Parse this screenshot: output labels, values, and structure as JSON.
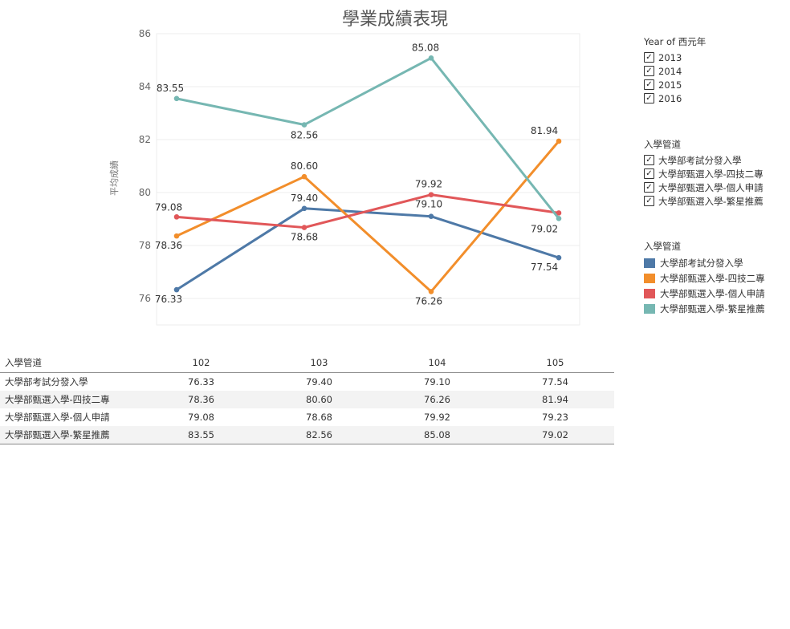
{
  "title": "學業成績表現",
  "year_filter": {
    "title": "Year of 西元年",
    "options": [
      "2013",
      "2014",
      "2015",
      "2016"
    ]
  },
  "channel_filter": {
    "title": "入學管道",
    "options": [
      "大學部考試分發入學",
      "大學部甄選入學-四技二專",
      "大學部甄選入學-個人申請",
      "大學部甄選入學-繁星推薦"
    ]
  },
  "color_legend": {
    "title": "入學管道",
    "items": [
      "大學部考試分發入學",
      "大學部甄選入學-四技二專",
      "大學部甄選入學-個人申請",
      "大學部甄選入學-繁星推薦"
    ]
  },
  "colors": [
    "#4e79a7",
    "#f28e2b",
    "#e15759",
    "#76b7b2"
  ],
  "chart_data": {
    "type": "line",
    "title": "學業成績表現",
    "ylabel": "平均成績",
    "xlabel": "",
    "ylim": [
      75,
      86
    ],
    "yticks": [
      76,
      78,
      80,
      82,
      84,
      86
    ],
    "x": [
      "102",
      "103",
      "104",
      "105"
    ],
    "grid": true,
    "legend": "right",
    "series": [
      {
        "name": "大學部考試分發入學",
        "values": [
          76.33,
          79.4,
          79.1,
          77.54
        ],
        "labels": [
          "76.33",
          "79.40",
          "79.10",
          "77.54"
        ]
      },
      {
        "name": "大學部甄選入學-四技二專",
        "values": [
          78.36,
          80.6,
          76.26,
          81.94
        ],
        "labels": [
          "78.36",
          "80.60",
          "76.26",
          "81.94"
        ]
      },
      {
        "name": "大學部甄選入學-個人申請",
        "values": [
          79.08,
          78.68,
          79.92,
          79.23
        ],
        "labels": [
          "79.08",
          "78.68",
          "79.92",
          ""
        ]
      },
      {
        "name": "大學部甄選入學-繁星推薦",
        "values": [
          83.55,
          82.56,
          85.08,
          79.02
        ],
        "labels": [
          "83.55",
          "82.56",
          "85.08",
          "79.02"
        ]
      }
    ]
  },
  "table": {
    "row_header": "入學管道",
    "columns": [
      "102",
      "103",
      "104",
      "105"
    ],
    "rows": [
      {
        "label": "大學部考試分發入學",
        "values": [
          "76.33",
          "79.40",
          "79.10",
          "77.54"
        ]
      },
      {
        "label": "大學部甄選入學-四技二專",
        "values": [
          "78.36",
          "80.60",
          "76.26",
          "81.94"
        ]
      },
      {
        "label": "大學部甄選入學-個人申請",
        "values": [
          "79.08",
          "78.68",
          "79.92",
          "79.23"
        ]
      },
      {
        "label": "大學部甄選入學-繁星推薦",
        "values": [
          "83.55",
          "82.56",
          "85.08",
          "79.02"
        ]
      }
    ]
  }
}
